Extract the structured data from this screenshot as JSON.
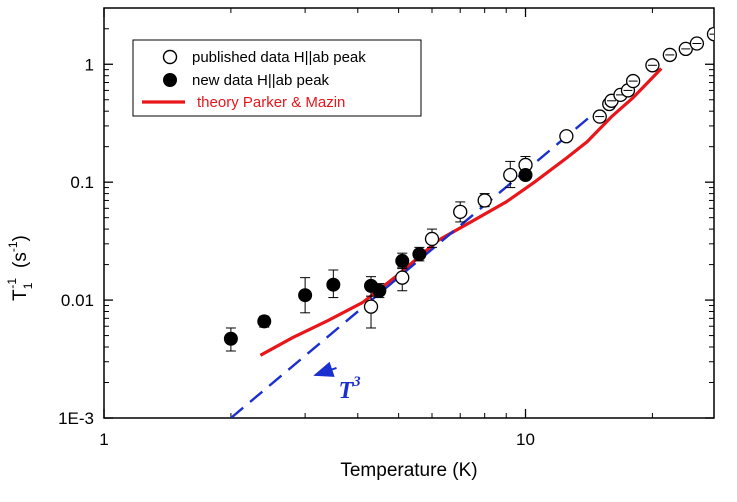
{
  "chart_data": {
    "type": "scatter",
    "xlabel": "Temperature (K)",
    "ylabel": {
      "base": "T",
      "sub": "1",
      "sup": "-1",
      "unit": "(s",
      "unit_sup": "-1",
      "unit_close": ")"
    },
    "xscale": "log",
    "yscale": "log",
    "xlim": [
      1,
      28
    ],
    "ylim": [
      0.001,
      3
    ],
    "x_ticks": [
      {
        "v": 1,
        "label": "1"
      },
      {
        "v": 10,
        "label": "10"
      }
    ],
    "y_ticks": [
      {
        "v": 0.001,
        "label": "1E-3"
      },
      {
        "v": 0.01,
        "label": "0.01"
      },
      {
        "v": 0.1,
        "label": "0.1"
      },
      {
        "v": 1,
        "label": "1"
      }
    ],
    "legend_position": "top-left",
    "series": [
      {
        "name": "published data H||ab peak",
        "marker": "open-circle",
        "color": "#000000",
        "points": [
          {
            "x": 4.3,
            "y": 0.0088,
            "err": [
              0.0058,
              0.0128
            ]
          },
          {
            "x": 5.1,
            "y": 0.0155,
            "err": [
              0.012,
              0.019
            ]
          },
          {
            "x": 6.0,
            "y": 0.033,
            "err": [
              0.028,
              0.04
            ]
          },
          {
            "x": 7.0,
            "y": 0.056,
            "err": [
              0.046,
              0.068
            ]
          },
          {
            "x": 8.0,
            "y": 0.07,
            "err": [
              0.062,
              0.08
            ]
          },
          {
            "x": 9.2,
            "y": 0.115,
            "err": [
              0.09,
              0.15
            ]
          },
          {
            "x": 10.0,
            "y": 0.14,
            "err": [
              0.12,
              0.165
            ]
          },
          {
            "x": 12.5,
            "y": 0.245
          },
          {
            "x": 15.0,
            "y": 0.36
          },
          {
            "x": 15.8,
            "y": 0.46
          },
          {
            "x": 16.0,
            "y": 0.49
          },
          {
            "x": 16.8,
            "y": 0.55
          },
          {
            "x": 17.5,
            "y": 0.6
          },
          {
            "x": 18.0,
            "y": 0.72
          },
          {
            "x": 20.0,
            "y": 0.98
          },
          {
            "x": 22.0,
            "y": 1.2
          },
          {
            "x": 24.0,
            "y": 1.35
          },
          {
            "x": 25.5,
            "y": 1.5
          },
          {
            "x": 28.0,
            "y": 1.8
          }
        ]
      },
      {
        "name": "new data H||ab peak",
        "marker": "filled-circle",
        "color": "#000000",
        "points": [
          {
            "x": 2.0,
            "y": 0.0047,
            "err": [
              0.0037,
              0.0058
            ]
          },
          {
            "x": 2.4,
            "y": 0.0066,
            "err": [
              0.0059,
              0.0073
            ]
          },
          {
            "x": 3.0,
            "y": 0.011,
            "err": [
              0.0078,
              0.0155
            ]
          },
          {
            "x": 3.5,
            "y": 0.0135,
            "err": [
              0.0105,
              0.018
            ]
          },
          {
            "x": 4.3,
            "y": 0.0132,
            "err": [
              0.0108,
              0.0158
            ]
          },
          {
            "x": 4.5,
            "y": 0.012,
            "err": [
              0.0105,
              0.0138
            ]
          },
          {
            "x": 5.1,
            "y": 0.0215,
            "err": [
              0.0185,
              0.025
            ]
          },
          {
            "x": 5.6,
            "y": 0.0245,
            "err": [
              0.0215,
              0.028
            ]
          },
          {
            "x": 10.0,
            "y": 0.115,
            "err": [
              0.105,
              0.125
            ]
          }
        ]
      },
      {
        "name": "theory Parker & Mazin",
        "marker": "line",
        "color": "#e8161b",
        "points": [
          {
            "x": 2.35,
            "y": 0.0034
          },
          {
            "x": 2.8,
            "y": 0.0048
          },
          {
            "x": 3.4,
            "y": 0.0067
          },
          {
            "x": 4.1,
            "y": 0.0095
          },
          {
            "x": 5.0,
            "y": 0.0165
          },
          {
            "x": 6.2,
            "y": 0.032
          },
          {
            "x": 7.5,
            "y": 0.047
          },
          {
            "x": 9.0,
            "y": 0.068
          },
          {
            "x": 10.5,
            "y": 0.1
          },
          {
            "x": 12.5,
            "y": 0.16
          },
          {
            "x": 14.0,
            "y": 0.22
          },
          {
            "x": 16.0,
            "y": 0.36
          },
          {
            "x": 18.0,
            "y": 0.52
          },
          {
            "x": 21.0,
            "y": 0.92
          }
        ]
      },
      {
        "name": "T^3",
        "marker": "dashed-line",
        "color": "#1a2fcf",
        "points": [
          {
            "x": 2.0,
            "y": 0.001
          },
          {
            "x": 14.5,
            "y": 0.38
          }
        ]
      }
    ],
    "annotations": [
      {
        "text": "T",
        "sup": "3",
        "color": "#1a2fcf",
        "arrow_to": {
          "x": 3.1,
          "y": 0.0025
        },
        "at": {
          "x": 3.6,
          "y": 0.0018
        }
      }
    ]
  }
}
